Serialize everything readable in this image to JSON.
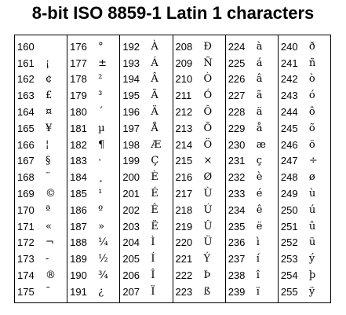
{
  "title": "8-bit ISO 8859-1 Latin 1 characters",
  "columns": [
    [
      {
        "code": "160",
        "char": " "
      },
      {
        "code": "161",
        "char": "¡"
      },
      {
        "code": "162",
        "char": "¢"
      },
      {
        "code": "163",
        "char": "£"
      },
      {
        "code": "164",
        "char": "¤"
      },
      {
        "code": "165",
        "char": "¥"
      },
      {
        "code": "166",
        "char": "¦"
      },
      {
        "code": "167",
        "char": "§"
      },
      {
        "code": "168",
        "char": "¨"
      },
      {
        "code": "169",
        "char": "©"
      },
      {
        "code": "170",
        "char": "ª"
      },
      {
        "code": "171",
        "char": "«"
      },
      {
        "code": "172",
        "char": "¬"
      },
      {
        "code": "173",
        "char": "-"
      },
      {
        "code": "174",
        "char": "®"
      },
      {
        "code": "175",
        "char": "¯"
      }
    ],
    [
      {
        "code": "176",
        "char": "°"
      },
      {
        "code": "177",
        "char": "±"
      },
      {
        "code": "178",
        "char": "²"
      },
      {
        "code": "179",
        "char": "³"
      },
      {
        "code": "180",
        "char": "´"
      },
      {
        "code": "181",
        "char": "µ"
      },
      {
        "code": "182",
        "char": "¶"
      },
      {
        "code": "183",
        "char": "·"
      },
      {
        "code": "184",
        "char": "¸"
      },
      {
        "code": "185",
        "char": "¹"
      },
      {
        "code": "186",
        "char": "º"
      },
      {
        "code": "187",
        "char": "»"
      },
      {
        "code": "188",
        "char": "¼"
      },
      {
        "code": "189",
        "char": "½"
      },
      {
        "code": "190",
        "char": "¾"
      },
      {
        "code": "191",
        "char": "¿"
      }
    ],
    [
      {
        "code": "192",
        "char": "À"
      },
      {
        "code": "193",
        "char": "Á"
      },
      {
        "code": "194",
        "char": "Â"
      },
      {
        "code": "195",
        "char": "Ã"
      },
      {
        "code": "196",
        "char": "Ä"
      },
      {
        "code": "197",
        "char": "Å"
      },
      {
        "code": "198",
        "char": "Æ"
      },
      {
        "code": "199",
        "char": "Ç"
      },
      {
        "code": "200",
        "char": "È"
      },
      {
        "code": "201",
        "char": "É"
      },
      {
        "code": "202",
        "char": "Ê"
      },
      {
        "code": "203",
        "char": "Ë"
      },
      {
        "code": "204",
        "char": "Ì"
      },
      {
        "code": "205",
        "char": "Í"
      },
      {
        "code": "206",
        "char": "Î"
      },
      {
        "code": "207",
        "char": "Ï"
      }
    ],
    [
      {
        "code": "208",
        "char": "Ð"
      },
      {
        "code": "209",
        "char": "Ñ"
      },
      {
        "code": "210",
        "char": "Ò"
      },
      {
        "code": "211",
        "char": "Ó"
      },
      {
        "code": "212",
        "char": "Ô"
      },
      {
        "code": "213",
        "char": "Õ"
      },
      {
        "code": "214",
        "char": "Ö"
      },
      {
        "code": "215",
        "char": "×"
      },
      {
        "code": "216",
        "char": "Ø"
      },
      {
        "code": "217",
        "char": "Ù"
      },
      {
        "code": "218",
        "char": "Ú"
      },
      {
        "code": "219",
        "char": "Û"
      },
      {
        "code": "220",
        "char": "Ü"
      },
      {
        "code": "221",
        "char": "Ý"
      },
      {
        "code": "222",
        "char": "Þ"
      },
      {
        "code": "223",
        "char": "ß"
      }
    ],
    [
      {
        "code": "224",
        "char": "à"
      },
      {
        "code": "225",
        "char": "á"
      },
      {
        "code": "226",
        "char": "â"
      },
      {
        "code": "227",
        "char": "ã"
      },
      {
        "code": "228",
        "char": "ä"
      },
      {
        "code": "229",
        "char": "å"
      },
      {
        "code": "230",
        "char": "æ"
      },
      {
        "code": "231",
        "char": "ç"
      },
      {
        "code": "232",
        "char": "è"
      },
      {
        "code": "233",
        "char": "é"
      },
      {
        "code": "234",
        "char": "ê"
      },
      {
        "code": "235",
        "char": "ë"
      },
      {
        "code": "236",
        "char": "ì"
      },
      {
        "code": "237",
        "char": "í"
      },
      {
        "code": "238",
        "char": "î"
      },
      {
        "code": "239",
        "char": "ï"
      }
    ],
    [
      {
        "code": "240",
        "char": "ð"
      },
      {
        "code": "241",
        "char": "ñ"
      },
      {
        "code": "242",
        "char": "ò"
      },
      {
        "code": "243",
        "char": "ó"
      },
      {
        "code": "244",
        "char": "ô"
      },
      {
        "code": "245",
        "char": "õ"
      },
      {
        "code": "246",
        "char": "ö"
      },
      {
        "code": "247",
        "char": "÷"
      },
      {
        "code": "248",
        "char": "ø"
      },
      {
        "code": "249",
        "char": "ù"
      },
      {
        "code": "250",
        "char": "ú"
      },
      {
        "code": "251",
        "char": "û"
      },
      {
        "code": "252",
        "char": "ü"
      },
      {
        "code": "253",
        "char": "ý"
      },
      {
        "code": "254",
        "char": "þ"
      },
      {
        "code": "255",
        "char": "ÿ"
      }
    ]
  ]
}
